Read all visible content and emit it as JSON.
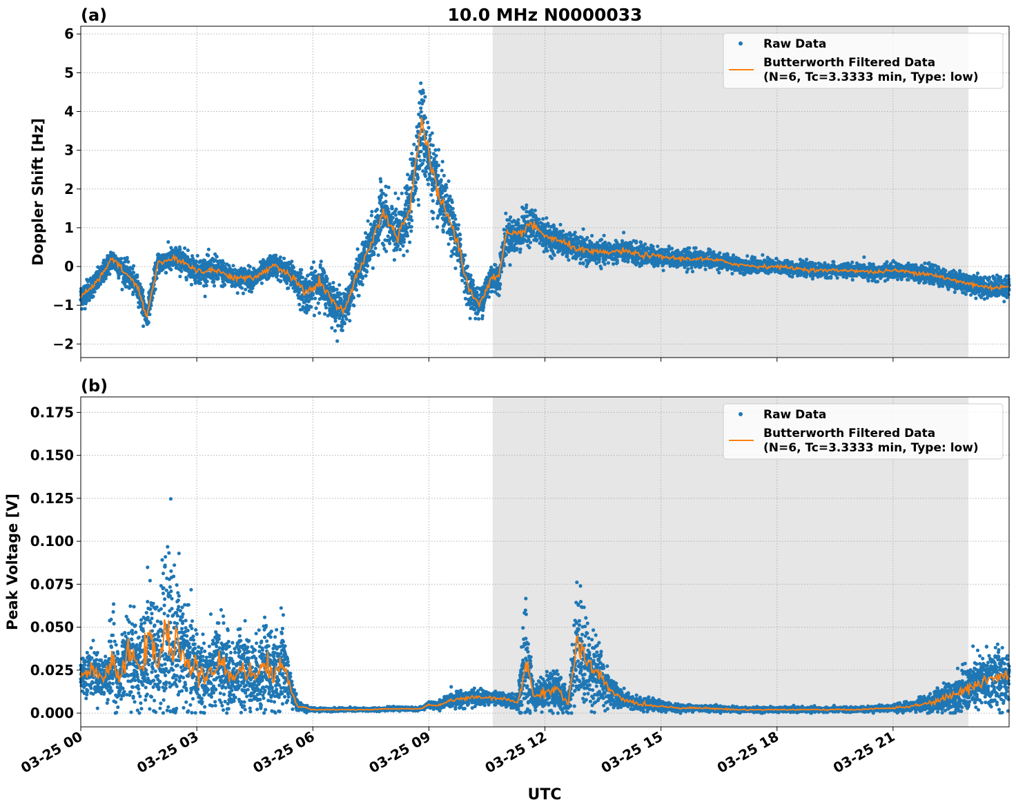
{
  "figure": {
    "xlabel": "UTC",
    "x_ticks": [
      "03-25 00",
      "03-25 03",
      "03-25 06",
      "03-25 09",
      "03-25 12",
      "03-25 15",
      "03-25 18",
      "03-25 21"
    ],
    "x_tick_hours": [
      0,
      3,
      6,
      9,
      12,
      15,
      18,
      21
    ],
    "xlim_hours": [
      0,
      24
    ],
    "shaded_interval_hours": [
      10.65,
      22.95
    ],
    "colors": {
      "raw": "#1f77b4",
      "filtered": "#ff7f0e",
      "shade": "#e6e6e6",
      "grid": "#b0b0b0"
    }
  },
  "chart_data": [
    {
      "type": "scatter",
      "panel_label": "(a)",
      "title": "10.0 MHz N0000033",
      "ylabel": "Doppler Shift [Hz]",
      "ylim": [
        -2.35,
        6.2
      ],
      "y_ticks": [
        -2,
        -1,
        0,
        1,
        2,
        3,
        4,
        5,
        6
      ],
      "y_tick_labels": [
        "−2",
        "−1",
        "0",
        "1",
        "2",
        "3",
        "4",
        "5",
        "6"
      ],
      "grid": true,
      "legend_position": "top-right",
      "series": [
        {
          "name": "Raw Data",
          "style": "points",
          "x_hours": [
            0,
            0.5,
            0.8,
            1.2,
            1.5,
            1.7,
            2.0,
            2.5,
            3.0,
            3.5,
            4.0,
            4.5,
            5.0,
            5.5,
            5.8,
            6.2,
            6.5,
            6.8,
            7.0,
            7.3,
            7.6,
            7.8,
            8.0,
            8.2,
            8.5,
            8.8,
            9.0,
            9.2,
            9.5,
            9.8,
            10.0,
            10.3,
            10.6,
            10.8,
            11.0,
            11.3,
            11.6,
            12.0,
            12.5,
            13.0,
            13.5,
            14.0,
            14.5,
            15.0,
            15.5,
            16.0,
            16.5,
            17.0,
            17.5,
            18.0,
            18.5,
            19.0,
            19.5,
            20.0,
            20.5,
            21.0,
            21.5,
            22.0,
            22.5,
            23.0,
            23.5,
            24.0
          ],
          "y_center": [
            -0.8,
            -0.3,
            0.2,
            -0.2,
            -0.6,
            -1.3,
            0.1,
            0.2,
            -0.1,
            -0.1,
            -0.3,
            -0.3,
            0.05,
            -0.3,
            -0.7,
            -0.4,
            -0.9,
            -1.2,
            -0.6,
            0.1,
            0.8,
            1.5,
            1.0,
            0.8,
            1.5,
            3.7,
            2.8,
            2.0,
            1.3,
            0.4,
            -0.5,
            -1.0,
            -0.3,
            -0.3,
            0.8,
            0.8,
            1.1,
            0.8,
            0.6,
            0.4,
            0.35,
            0.4,
            0.3,
            0.25,
            0.2,
            0.2,
            0.15,
            0.05,
            0.0,
            0.0,
            -0.05,
            -0.1,
            -0.1,
            -0.1,
            -0.15,
            -0.1,
            -0.15,
            -0.2,
            -0.35,
            -0.45,
            -0.55,
            -0.5
          ],
          "y_spread": [
            0.35,
            0.3,
            0.3,
            0.35,
            0.35,
            0.35,
            0.3,
            0.35,
            0.35,
            0.4,
            0.3,
            0.3,
            0.3,
            0.4,
            0.55,
            0.55,
            0.55,
            0.5,
            0.5,
            0.6,
            0.7,
            0.8,
            0.7,
            0.8,
            0.9,
            1.3,
            1.1,
            0.9,
            0.8,
            0.6,
            0.5,
            0.45,
            0.45,
            0.45,
            0.5,
            0.5,
            0.5,
            0.4,
            0.35,
            0.35,
            0.3,
            0.3,
            0.3,
            0.25,
            0.25,
            0.25,
            0.22,
            0.2,
            0.2,
            0.2,
            0.18,
            0.18,
            0.18,
            0.18,
            0.2,
            0.2,
            0.22,
            0.25,
            0.25,
            0.28,
            0.28,
            0.3
          ]
        },
        {
          "name": "Butterworth Filtered Data\n(N=6, Tc=3.3333 min, Type: low)",
          "style": "line",
          "x_hours": [
            0,
            0.5,
            0.8,
            1.2,
            1.5,
            1.7,
            2.0,
            2.5,
            3.0,
            3.5,
            4.0,
            4.5,
            5.0,
            5.5,
            5.8,
            6.2,
            6.5,
            6.8,
            7.0,
            7.3,
            7.6,
            7.8,
            8.0,
            8.2,
            8.5,
            8.8,
            9.0,
            9.2,
            9.5,
            9.8,
            10.0,
            10.3,
            10.6,
            10.8,
            11.0,
            11.3,
            11.6,
            12.0,
            12.5,
            13.0,
            13.5,
            14.0,
            14.5,
            15.0,
            15.5,
            16.0,
            16.5,
            17.0,
            17.5,
            18.0,
            18.5,
            19.0,
            19.5,
            20.0,
            20.5,
            21.0,
            21.5,
            22.0,
            22.5,
            23.0,
            23.5,
            24.0
          ],
          "y": [
            -0.8,
            -0.3,
            0.2,
            -0.2,
            -0.6,
            -1.3,
            0.1,
            0.2,
            -0.1,
            -0.1,
            -0.3,
            -0.3,
            0.05,
            -0.3,
            -0.7,
            -0.4,
            -0.9,
            -1.2,
            -0.6,
            0.1,
            0.8,
            1.5,
            1.0,
            0.8,
            1.5,
            3.7,
            2.8,
            2.0,
            1.3,
            0.4,
            -0.5,
            -1.0,
            -0.3,
            -0.3,
            0.8,
            0.8,
            1.1,
            0.8,
            0.6,
            0.4,
            0.35,
            0.4,
            0.3,
            0.25,
            0.2,
            0.2,
            0.15,
            0.05,
            0.0,
            0.0,
            -0.05,
            -0.1,
            -0.1,
            -0.1,
            -0.15,
            -0.1,
            -0.15,
            -0.2,
            -0.35,
            -0.45,
            -0.55,
            -0.5
          ]
        }
      ]
    },
    {
      "type": "scatter",
      "panel_label": "(b)",
      "title": "",
      "ylabel": "Peak Voltage [V]",
      "ylim": [
        -0.008,
        0.184
      ],
      "y_ticks": [
        0.0,
        0.025,
        0.05,
        0.075,
        0.1,
        0.125,
        0.15,
        0.175
      ],
      "y_tick_labels": [
        "0.000",
        "0.025",
        "0.050",
        "0.075",
        "0.100",
        "0.125",
        "0.150",
        "0.175"
      ],
      "grid": true,
      "legend_position": "top-right",
      "series": [
        {
          "name": "Raw Data",
          "style": "points",
          "x_hours": [
            0,
            0.3,
            0.6,
            0.85,
            1.0,
            1.2,
            1.5,
            1.8,
            2.0,
            2.2,
            2.4,
            2.6,
            2.8,
            3.0,
            3.3,
            3.6,
            3.9,
            4.2,
            4.5,
            4.8,
            5.0,
            5.2,
            5.35,
            5.6,
            6.0,
            6.5,
            7.0,
            7.5,
            8.0,
            8.5,
            8.8,
            9.0,
            9.2,
            9.5,
            10.0,
            10.5,
            11.0,
            11.3,
            11.5,
            11.7,
            12.0,
            12.3,
            12.6,
            12.85,
            13.0,
            13.3,
            13.6,
            14.0,
            14.5,
            15.0,
            15.5,
            16.0,
            17.0,
            18.0,
            19.0,
            20.0,
            21.0,
            21.5,
            22.0,
            22.5,
            23.0,
            23.5,
            24.0
          ],
          "y_center": [
            0.022,
            0.025,
            0.02,
            0.03,
            0.018,
            0.035,
            0.028,
            0.04,
            0.03,
            0.045,
            0.035,
            0.04,
            0.028,
            0.025,
            0.02,
            0.03,
            0.02,
            0.028,
            0.02,
            0.03,
            0.02,
            0.03,
            0.02,
            0.004,
            0.002,
            0.002,
            0.002,
            0.002,
            0.0025,
            0.0025,
            0.0025,
            0.005,
            0.004,
            0.007,
            0.009,
            0.009,
            0.008,
            0.006,
            0.03,
            0.01,
            0.012,
            0.015,
            0.005,
            0.045,
            0.03,
            0.025,
            0.015,
            0.008,
            0.005,
            0.004,
            0.003,
            0.003,
            0.002,
            0.002,
            0.002,
            0.002,
            0.003,
            0.004,
            0.006,
            0.01,
            0.015,
            0.02,
            0.022
          ],
          "y_spread": [
            0.012,
            0.014,
            0.012,
            0.03,
            0.015,
            0.035,
            0.02,
            0.045,
            0.03,
            0.06,
            0.05,
            0.04,
            0.03,
            0.03,
            0.02,
            0.03,
            0.02,
            0.028,
            0.02,
            0.035,
            0.02,
            0.03,
            0.015,
            0.003,
            0.001,
            0.001,
            0.001,
            0.001,
            0.001,
            0.001,
            0.001,
            0.002,
            0.002,
            0.004,
            0.005,
            0.004,
            0.004,
            0.004,
            0.04,
            0.008,
            0.01,
            0.015,
            0.005,
            0.04,
            0.03,
            0.025,
            0.012,
            0.005,
            0.004,
            0.003,
            0.002,
            0.002,
            0.0015,
            0.0015,
            0.0015,
            0.0015,
            0.002,
            0.003,
            0.006,
            0.01,
            0.015,
            0.02,
            0.02
          ]
        },
        {
          "name": "Butterworth Filtered Data\n(N=6, Tc=3.3333 min, Type: low)",
          "style": "line",
          "x_hours": [
            0,
            0.3,
            0.6,
            0.85,
            1.0,
            1.2,
            1.5,
            1.8,
            2.0,
            2.2,
            2.4,
            2.6,
            2.8,
            3.0,
            3.3,
            3.6,
            3.9,
            4.2,
            4.5,
            4.8,
            5.0,
            5.2,
            5.35,
            5.6,
            6.0,
            6.5,
            7.0,
            7.5,
            8.0,
            8.5,
            8.8,
            9.0,
            9.2,
            9.5,
            10.0,
            10.5,
            11.0,
            11.3,
            11.5,
            11.7,
            12.0,
            12.3,
            12.6,
            12.85,
            13.0,
            13.3,
            13.6,
            14.0,
            14.5,
            15.0,
            15.5,
            16.0,
            17.0,
            18.0,
            19.0,
            20.0,
            21.0,
            21.5,
            22.0,
            22.5,
            23.0,
            23.5,
            24.0
          ],
          "y": [
            0.022,
            0.025,
            0.02,
            0.03,
            0.018,
            0.035,
            0.028,
            0.04,
            0.03,
            0.045,
            0.035,
            0.04,
            0.028,
            0.025,
            0.02,
            0.03,
            0.02,
            0.028,
            0.02,
            0.03,
            0.02,
            0.03,
            0.02,
            0.004,
            0.002,
            0.002,
            0.002,
            0.002,
            0.0025,
            0.0025,
            0.0025,
            0.005,
            0.004,
            0.007,
            0.009,
            0.009,
            0.008,
            0.006,
            0.03,
            0.01,
            0.012,
            0.015,
            0.005,
            0.045,
            0.03,
            0.025,
            0.015,
            0.008,
            0.005,
            0.004,
            0.003,
            0.003,
            0.002,
            0.002,
            0.002,
            0.002,
            0.003,
            0.004,
            0.006,
            0.01,
            0.015,
            0.02,
            0.022
          ]
        }
      ]
    }
  ]
}
